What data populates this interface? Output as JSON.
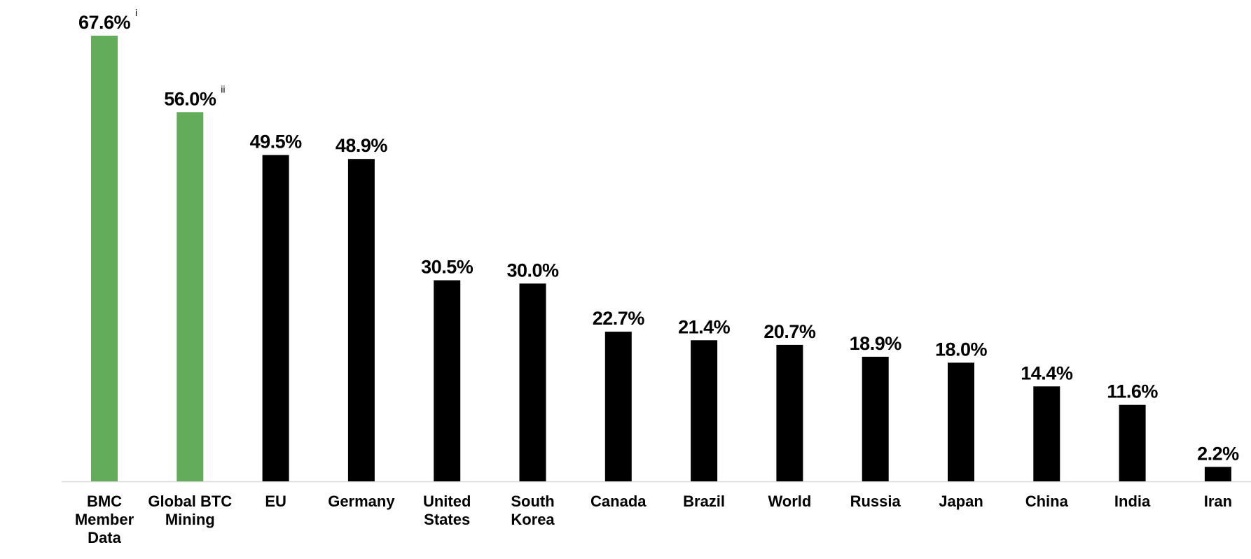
{
  "chart_data": {
    "type": "bar",
    "categories": [
      [
        "BMC",
        "Member",
        "Data"
      ],
      [
        "Global BTC",
        "Mining"
      ],
      [
        "EU"
      ],
      [
        "Germany"
      ],
      [
        "United",
        "States"
      ],
      [
        "South",
        "Korea"
      ],
      [
        "Canada"
      ],
      [
        "Brazil"
      ],
      [
        "World"
      ],
      [
        "Russia"
      ],
      [
        "Japan"
      ],
      [
        "China"
      ],
      [
        "India"
      ],
      [
        "Iran"
      ]
    ],
    "values": [
      67.6,
      56.0,
      49.5,
      48.9,
      30.5,
      30.0,
      22.7,
      21.4,
      20.7,
      18.9,
      18.0,
      14.4,
      11.6,
      2.2
    ],
    "value_labels": [
      "67.6%",
      "56.0%",
      "49.5%",
      "48.9%",
      "30.5%",
      "30.0%",
      "22.7%",
      "21.4%",
      "20.7%",
      "18.9%",
      "18.0%",
      "14.4%",
      "11.6%",
      "2.2%"
    ],
    "footnote_marks": [
      "i",
      "ii",
      "",
      "",
      "",
      "",
      "",
      "",
      "",
      "",
      "",
      "",
      "",
      ""
    ],
    "bar_colors": [
      "#62ac5a",
      "#62ac5a",
      "#000000",
      "#000000",
      "#000000",
      "#000000",
      "#000000",
      "#000000",
      "#000000",
      "#000000",
      "#000000",
      "#000000",
      "#000000",
      "#000000"
    ],
    "axis_color": "#d9d9d9",
    "title": "",
    "xlabel": "",
    "ylabel": "",
    "ylim": [
      0,
      67.6
    ],
    "grid": false,
    "legend": "none"
  }
}
